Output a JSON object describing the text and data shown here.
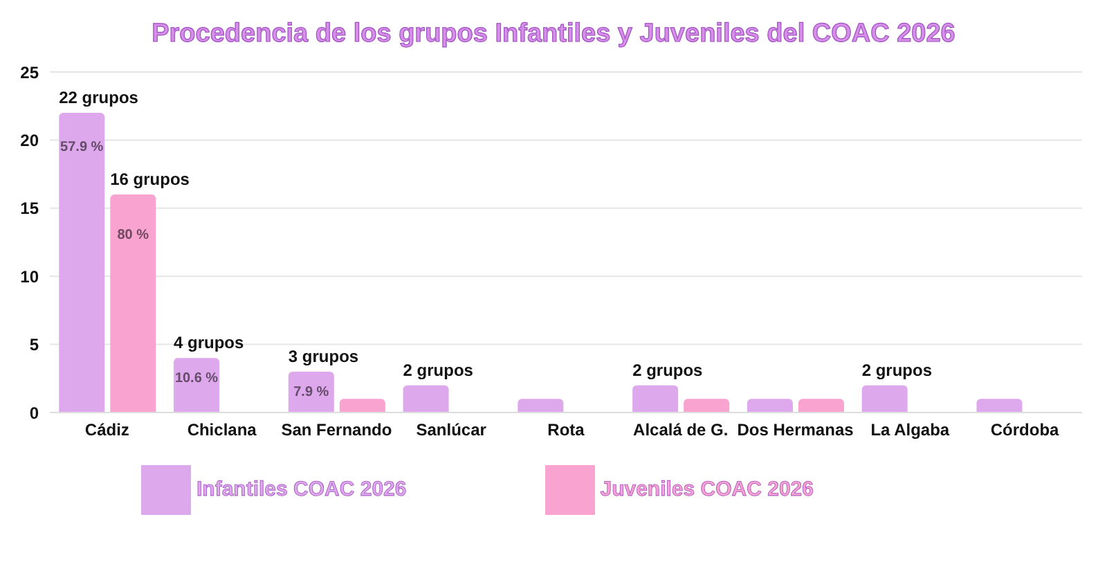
{
  "chart_data": {
    "type": "bar",
    "title": "Procedencia de los grupos Infantiles y Juveniles del COAC 2026",
    "categories": [
      "Cádiz",
      "Chiclana",
      "San Fernando",
      "Sanlúcar",
      "Rota",
      "Alcalá de G.",
      "Dos Hermanas",
      "La Algaba",
      "Córdoba"
    ],
    "series": [
      {
        "name": "Infantiles COAC 2026",
        "color": "#dea8ec",
        "values": [
          22,
          4,
          3,
          2,
          1,
          2,
          1,
          2,
          1
        ],
        "value_labels": [
          "22 grupos",
          "4 grupos",
          "3 grupos",
          "2 grupos",
          null,
          "2 grupos",
          null,
          "2 grupos",
          null
        ]
      },
      {
        "name": "Juveniles COAC 2026",
        "color": "#f9a3d0",
        "values": [
          16,
          0,
          1,
          0,
          0,
          1,
          1,
          0,
          0
        ],
        "value_labels": [
          "16 grupos",
          null,
          null,
          null,
          null,
          null,
          null,
          null,
          null
        ]
      }
    ],
    "annotations": [
      {
        "text": "57.9 %",
        "x": "Cádiz",
        "y": 19.5
      },
      {
        "text": "80 %",
        "x": "Cádiz",
        "y": 13
      },
      {
        "text": "10.6 %",
        "x": "Chiclana",
        "y": 2.5
      },
      {
        "text": "7.9 %",
        "x": "San Fernando",
        "y": 1.5
      }
    ],
    "ylim": [
      0,
      25
    ],
    "yticks": [
      0,
      5,
      10,
      15,
      20,
      25
    ],
    "grid": "y",
    "legend": "bottom"
  }
}
